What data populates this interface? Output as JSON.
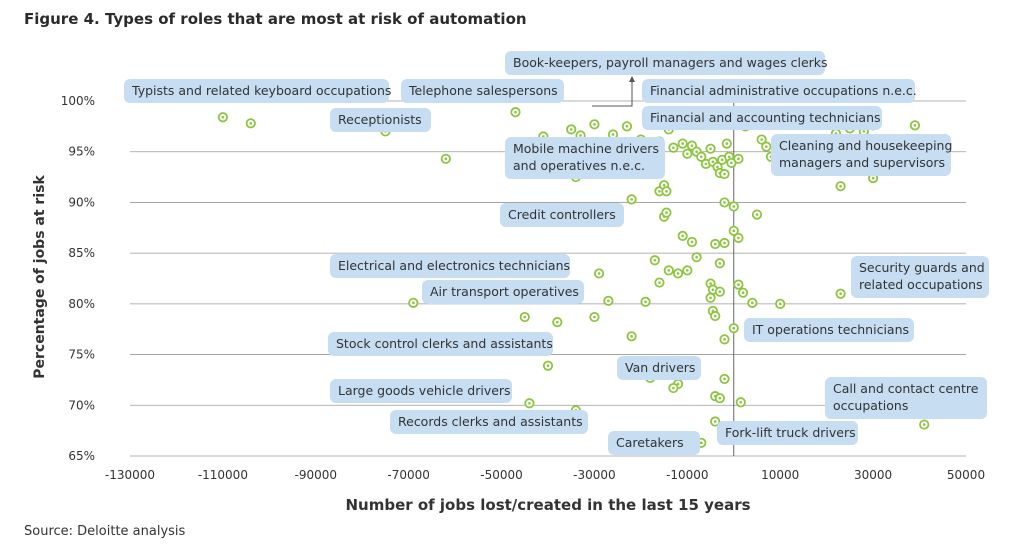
{
  "title": "Figure 4. Types of roles that are most at risk of automation",
  "source": "Source: Deloitte analysis",
  "chart_data": {
    "type": "scatter",
    "title": "Figure 4. Types of roles that are most at risk of automation",
    "xlabel": "Number of jobs lost/created in the last 15 years",
    "ylabel": "Percentage of jobs at risk",
    "xlim": [
      -130000,
      50000
    ],
    "ylim": [
      65,
      100
    ],
    "xticks": [
      -130000,
      -110000,
      -90000,
      -70000,
      -50000,
      -30000,
      -10000,
      10000,
      30000,
      50000
    ],
    "xtick_labels": [
      "-130000",
      "-110000",
      "-90000",
      "-70000",
      "-50000",
      "-30000",
      "-10000",
      "10000",
      "30000",
      "50000"
    ],
    "yticks": [
      65,
      70,
      75,
      80,
      85,
      90,
      95,
      100
    ],
    "ytick_labels": [
      "65%",
      "70%",
      "75%",
      "80%",
      "85%",
      "90%",
      "95%",
      "100%"
    ],
    "grid": "horizontal",
    "marker_color": "#8cc63f",
    "reference_line_x": 0,
    "points": [
      {
        "x": -110000,
        "y": 98.4
      },
      {
        "x": -104000,
        "y": 97.8
      },
      {
        "x": -75000,
        "y": 97.0
      },
      {
        "x": -62000,
        "y": 94.3
      },
      {
        "x": -47000,
        "y": 98.9
      },
      {
        "x": -41000,
        "y": 96.5
      },
      {
        "x": -35000,
        "y": 97.2
      },
      {
        "x": -33000,
        "y": 96.6
      },
      {
        "x": -30000,
        "y": 97.7
      },
      {
        "x": -26000,
        "y": 96.7
      },
      {
        "x": -23000,
        "y": 97.5
      },
      {
        "x": -20000,
        "y": 96.2
      },
      {
        "x": -16000,
        "y": 96.0
      },
      {
        "x": -14000,
        "y": 97.2
      },
      {
        "x": -13000,
        "y": 95.4
      },
      {
        "x": -11000,
        "y": 95.8
      },
      {
        "x": -10000,
        "y": 94.8
      },
      {
        "x": -9000,
        "y": 95.6
      },
      {
        "x": -8000,
        "y": 95.0
      },
      {
        "x": -7000,
        "y": 94.5
      },
      {
        "x": -6000,
        "y": 93.8
      },
      {
        "x": -5000,
        "y": 95.3
      },
      {
        "x": -4500,
        "y": 94.0
      },
      {
        "x": -3500,
        "y": 93.5
      },
      {
        "x": -3000,
        "y": 92.9
      },
      {
        "x": -2500,
        "y": 94.2
      },
      {
        "x": -2000,
        "y": 92.8
      },
      {
        "x": -1500,
        "y": 95.8
      },
      {
        "x": -1000,
        "y": 94.5
      },
      {
        "x": -500,
        "y": 93.9
      },
      {
        "x": 1000,
        "y": 94.3
      },
      {
        "x": 2500,
        "y": 97.5
      },
      {
        "x": 6000,
        "y": 96.2
      },
      {
        "x": 7000,
        "y": 95.5
      },
      {
        "x": 8000,
        "y": 94.5
      },
      {
        "x": 9000,
        "y": 97.9
      },
      {
        "x": 13000,
        "y": 96.0
      },
      {
        "x": 16000,
        "y": 94.9
      },
      {
        "x": 20000,
        "y": 95.5
      },
      {
        "x": 22000,
        "y": 96.8
      },
      {
        "x": 23000,
        "y": 94.2
      },
      {
        "x": 25000,
        "y": 97.3
      },
      {
        "x": 28000,
        "y": 97.0
      },
      {
        "x": 30000,
        "y": 97.6
      },
      {
        "x": 36000,
        "y": 94.0
      },
      {
        "x": 39000,
        "y": 97.6
      },
      {
        "x": 23000,
        "y": 91.6
      },
      {
        "x": 30000,
        "y": 92.4
      },
      {
        "x": -34000,
        "y": 92.5
      },
      {
        "x": -22000,
        "y": 90.3
      },
      {
        "x": -16000,
        "y": 91.1
      },
      {
        "x": -15000,
        "y": 91.7
      },
      {
        "x": -14500,
        "y": 91.1
      },
      {
        "x": -38000,
        "y": 88.2
      },
      {
        "x": -15000,
        "y": 88.6
      },
      {
        "x": -14500,
        "y": 89.0
      },
      {
        "x": -2000,
        "y": 90.0
      },
      {
        "x": 0,
        "y": 89.6
      },
      {
        "x": 5000,
        "y": 88.8
      },
      {
        "x": -11000,
        "y": 86.7
      },
      {
        "x": -9000,
        "y": 86.1
      },
      {
        "x": -8000,
        "y": 84.6
      },
      {
        "x": -4000,
        "y": 85.9
      },
      {
        "x": -2000,
        "y": 86.0
      },
      {
        "x": 0,
        "y": 87.2
      },
      {
        "x": 1000,
        "y": 86.5
      },
      {
        "x": -17000,
        "y": 84.3
      },
      {
        "x": -16000,
        "y": 82.1
      },
      {
        "x": -14000,
        "y": 83.3
      },
      {
        "x": -12000,
        "y": 83.0
      },
      {
        "x": -10000,
        "y": 83.3
      },
      {
        "x": -5000,
        "y": 82.0
      },
      {
        "x": -4500,
        "y": 81.4
      },
      {
        "x": -3000,
        "y": 84.0
      },
      {
        "x": -3000,
        "y": 81.2
      },
      {
        "x": -29000,
        "y": 83.0
      },
      {
        "x": 27000,
        "y": 84.0
      },
      {
        "x": 26500,
        "y": 83.1
      },
      {
        "x": 23000,
        "y": 81.0
      },
      {
        "x": -69000,
        "y": 80.1
      },
      {
        "x": -27000,
        "y": 80.3
      },
      {
        "x": -19000,
        "y": 80.2
      },
      {
        "x": -5000,
        "y": 80.6
      },
      {
        "x": -4500,
        "y": 79.3
      },
      {
        "x": -4000,
        "y": 78.8
      },
      {
        "x": 1000,
        "y": 81.9
      },
      {
        "x": 2000,
        "y": 81.1
      },
      {
        "x": 4000,
        "y": 80.1
      },
      {
        "x": 10000,
        "y": 80.0
      },
      {
        "x": -45000,
        "y": 78.7
      },
      {
        "x": -38000,
        "y": 78.2
      },
      {
        "x": -30000,
        "y": 78.7
      },
      {
        "x": -22000,
        "y": 76.8
      },
      {
        "x": 0,
        "y": 77.6
      },
      {
        "x": -2000,
        "y": 76.5
      },
      {
        "x": -40000,
        "y": 73.9
      },
      {
        "x": -18000,
        "y": 72.7
      },
      {
        "x": -12000,
        "y": 72.1
      },
      {
        "x": -13000,
        "y": 71.7
      },
      {
        "x": -4000,
        "y": 70.9
      },
      {
        "x": -3000,
        "y": 70.7
      },
      {
        "x": -2000,
        "y": 72.6
      },
      {
        "x": 1500,
        "y": 70.3
      },
      {
        "x": -44000,
        "y": 70.2
      },
      {
        "x": -34000,
        "y": 69.5
      },
      {
        "x": -4000,
        "y": 68.4
      },
      {
        "x": -7000,
        "y": 66.3
      },
      {
        "x": 41000,
        "y": 68.1
      }
    ],
    "annotations": [
      {
        "text": [
          "Book-keepers, payroll managers and wages clerks"
        ]
      },
      {
        "text": [
          "Typists and related keyboard occupations"
        ]
      },
      {
        "text": [
          "Telephone salespersons"
        ]
      },
      {
        "text": [
          "Financial administrative occupations n.e.c."
        ]
      },
      {
        "text": [
          "Receptionists"
        ]
      },
      {
        "text": [
          "Financial and accounting technicians"
        ]
      },
      {
        "text": [
          "Mobile machine drivers",
          "and operatives n.e.c."
        ]
      },
      {
        "text": [
          "Cleaning and housekeeping",
          "managers and supervisors"
        ]
      },
      {
        "text": [
          "Credit controllers"
        ]
      },
      {
        "text": [
          "Electrical and electronics technicians"
        ]
      },
      {
        "text": [
          "Security guards and",
          "related occupations"
        ]
      },
      {
        "text": [
          "Air transport operatives"
        ]
      },
      {
        "text": [
          "IT operations technicians"
        ]
      },
      {
        "text": [
          "Stock control clerks and assistants"
        ]
      },
      {
        "text": [
          "Van drivers"
        ]
      },
      {
        "text": [
          "Large goods vehicle drivers"
        ]
      },
      {
        "text": [
          "Call and contact centre",
          "occupations"
        ]
      },
      {
        "text": [
          "Records clerks and assistants"
        ]
      },
      {
        "text": [
          "Fork-lift truck drivers"
        ]
      },
      {
        "text": [
          "Caretakers"
        ]
      }
    ]
  }
}
